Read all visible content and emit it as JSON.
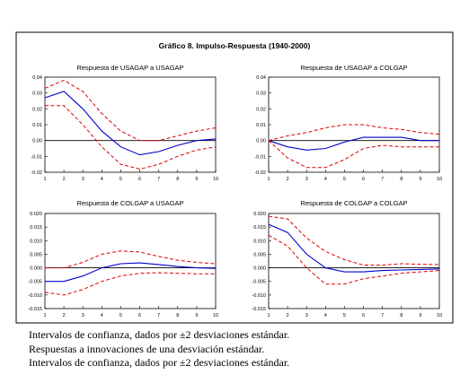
{
  "figure_title": "Gráfico 8. Impulso-Respuesta (1940-2000)",
  "notes": [
    "Intervalos de confianza, dados por ±2 desviaciones estándar.",
    "Respuestas a innovaciones de una desviación estándar.",
    "Intervalos de confianza, dados por ±2 desviaciones estándar."
  ],
  "colors": {
    "response": "#0000cc",
    "band": "#dd0000",
    "zero": "#000000",
    "frame": "#000000"
  },
  "chart_data": [
    {
      "type": "line",
      "title": "Respuesta de USAGAP a USAGAP",
      "x": [
        1,
        2,
        3,
        4,
        5,
        6,
        7,
        8,
        9,
        10
      ],
      "ylim": [
        -0.02,
        0.04
      ],
      "yticks": [
        "0.04",
        "0.03",
        "0.02",
        "0.01",
        "0.00",
        "-0.01",
        "-0.02"
      ],
      "series": [
        {
          "role": "response",
          "values": [
            0.027,
            0.031,
            0.02,
            0.006,
            -0.004,
            -0.009,
            -0.007,
            -0.003,
            0.0,
            0.001
          ]
        },
        {
          "role": "upper",
          "values": [
            0.033,
            0.038,
            0.031,
            0.017,
            0.006,
            0.0,
            0.0,
            0.003,
            0.006,
            0.008
          ]
        },
        {
          "role": "lower",
          "values": [
            0.022,
            0.022,
            0.01,
            -0.004,
            -0.015,
            -0.018,
            -0.015,
            -0.01,
            -0.006,
            -0.004
          ]
        }
      ]
    },
    {
      "type": "line",
      "title": "Respuesta de USAGAP a COLGAP",
      "x": [
        1,
        2,
        3,
        4,
        5,
        6,
        7,
        8,
        9,
        10
      ],
      "ylim": [
        -0.02,
        0.04
      ],
      "yticks": [
        "0.04",
        "0.03",
        "0.02",
        "0.01",
        "0.00",
        "-0.01",
        "-0.02"
      ],
      "series": [
        {
          "role": "response",
          "values": [
            0.0,
            -0.004,
            -0.006,
            -0.005,
            -0.001,
            0.002,
            0.002,
            0.002,
            0.0,
            0.0
          ]
        },
        {
          "role": "upper",
          "values": [
            0.0,
            0.003,
            0.005,
            0.008,
            0.01,
            0.01,
            0.008,
            0.007,
            0.005,
            0.004
          ]
        },
        {
          "role": "lower",
          "values": [
            0.0,
            -0.011,
            -0.017,
            -0.017,
            -0.012,
            -0.005,
            -0.003,
            -0.004,
            -0.004,
            -0.004
          ]
        }
      ]
    },
    {
      "type": "line",
      "title": "Respuesta de COLGAP a USAGAP",
      "x": [
        1,
        2,
        3,
        4,
        5,
        6,
        7,
        8,
        9,
        10
      ],
      "ylim": [
        -0.015,
        0.02
      ],
      "yticks": [
        "0.020",
        "0.015",
        "0.010",
        "0.005",
        "0.000",
        "-0.005",
        "-0.010",
        "-0.015"
      ],
      "series": [
        {
          "role": "response",
          "values": [
            -0.005,
            -0.005,
            -0.003,
            0.0,
            0.0015,
            0.0018,
            0.0012,
            0.0005,
            0.0,
            -0.0002
          ]
        },
        {
          "role": "upper",
          "values": [
            0.0,
            0.0,
            0.002,
            0.005,
            0.0062,
            0.0058,
            0.0042,
            0.0028,
            0.002,
            0.0015
          ]
        },
        {
          "role": "lower",
          "values": [
            -0.009,
            -0.01,
            -0.008,
            -0.005,
            -0.003,
            -0.002,
            -0.0018,
            -0.002,
            -0.0022,
            -0.0022
          ]
        }
      ]
    },
    {
      "type": "line",
      "title": "Respuesta de COLGAP a COLGAP",
      "x": [
        1,
        2,
        3,
        4,
        5,
        6,
        7,
        8,
        9,
        10
      ],
      "ylim": [
        -0.015,
        0.02
      ],
      "yticks": [
        "0.020",
        "0.015",
        "0.010",
        "0.005",
        "0.000",
        "-0.005",
        "-0.010",
        "-0.015"
      ],
      "series": [
        {
          "role": "response",
          "values": [
            0.016,
            0.013,
            0.005,
            0.0,
            -0.0015,
            -0.0015,
            -0.001,
            -0.0008,
            -0.0006,
            -0.0004
          ]
        },
        {
          "role": "upper",
          "values": [
            0.019,
            0.018,
            0.011,
            0.006,
            0.003,
            0.001,
            0.001,
            0.0015,
            0.0013,
            0.0012
          ]
        },
        {
          "role": "lower",
          "values": [
            0.012,
            0.008,
            0.0,
            -0.006,
            -0.006,
            -0.004,
            -0.003,
            -0.002,
            -0.0015,
            -0.001
          ]
        }
      ]
    }
  ]
}
